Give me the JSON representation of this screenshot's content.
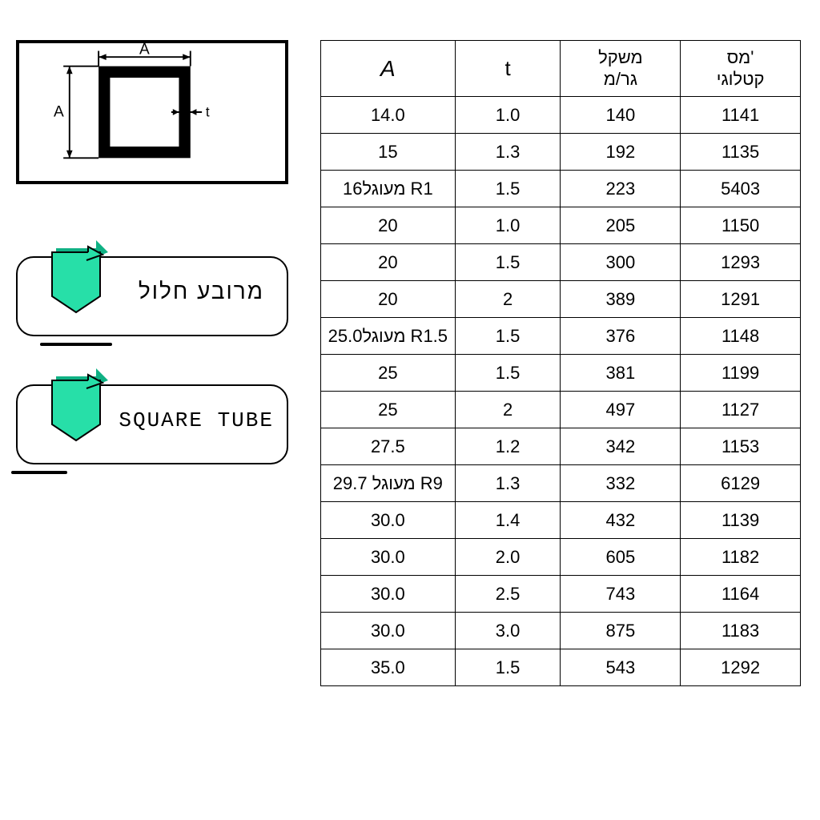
{
  "diagram": {
    "label_A_top": "A",
    "label_A_left": "A",
    "label_t": "t",
    "stroke": "#000000",
    "tube_fill": "#000000",
    "inner_fill": "#ffffff"
  },
  "tags": [
    {
      "text": "מרובע חלול",
      "lang": "he",
      "ribbon_color": "#27dfa8",
      "ribbon_shadow": "#0fb184"
    },
    {
      "text": "SQUARE TUBE",
      "lang": "en",
      "ribbon_color": "#27dfa8",
      "ribbon_shadow": "#0fb184"
    }
  ],
  "table": {
    "border_color": "#000000",
    "background": "#ffffff",
    "header_fontsize": 22,
    "cell_fontsize": 22,
    "columns": [
      {
        "key": "A",
        "label": "A"
      },
      {
        "key": "t",
        "label": "t"
      },
      {
        "key": "weight",
        "label_line1": "משקל",
        "label_line2": "גר/מ"
      },
      {
        "key": "catalog",
        "label_line1": "מס'",
        "label_line2": "קטלוגי"
      }
    ],
    "rows": [
      {
        "A": "14.0",
        "t": "1.0",
        "weight": "140",
        "catalog": "1141"
      },
      {
        "A": "15",
        "t": "1.3",
        "weight": "192",
        "catalog": "1135"
      },
      {
        "A": "16מעוגל R1",
        "t": "1.5",
        "weight": "223",
        "catalog": "5403"
      },
      {
        "A": "20",
        "t": "1.0",
        "weight": "205",
        "catalog": "1150"
      },
      {
        "A": "20",
        "t": "1.5",
        "weight": "300",
        "catalog": "1293"
      },
      {
        "A": "20",
        "t": "2",
        "weight": "389",
        "catalog": "1291"
      },
      {
        "A": "25.0מעוגל R1.5",
        "t": "1.5",
        "weight": "376",
        "catalog": "1148"
      },
      {
        "A": "25",
        "t": "1.5",
        "weight": "381",
        "catalog": "1199"
      },
      {
        "A": "25",
        "t": "2",
        "weight": "497",
        "catalog": "1127"
      },
      {
        "A": "27.5",
        "t": "1.2",
        "weight": "342",
        "catalog": "1153"
      },
      {
        "A": "29.7 מעוגל R9",
        "t": "1.3",
        "weight": "332",
        "catalog": "6129"
      },
      {
        "A": "30.0",
        "t": "1.4",
        "weight": "432",
        "catalog": "1139"
      },
      {
        "A": "30.0",
        "t": "2.0",
        "weight": "605",
        "catalog": "1182"
      },
      {
        "A": "30.0",
        "t": "2.5",
        "weight": "743",
        "catalog": "1164"
      },
      {
        "A": "30.0",
        "t": "3.0",
        "weight": "875",
        "catalog": "1183"
      },
      {
        "A": "35.0",
        "t": "1.5",
        "weight": "543",
        "catalog": "1292"
      }
    ]
  }
}
